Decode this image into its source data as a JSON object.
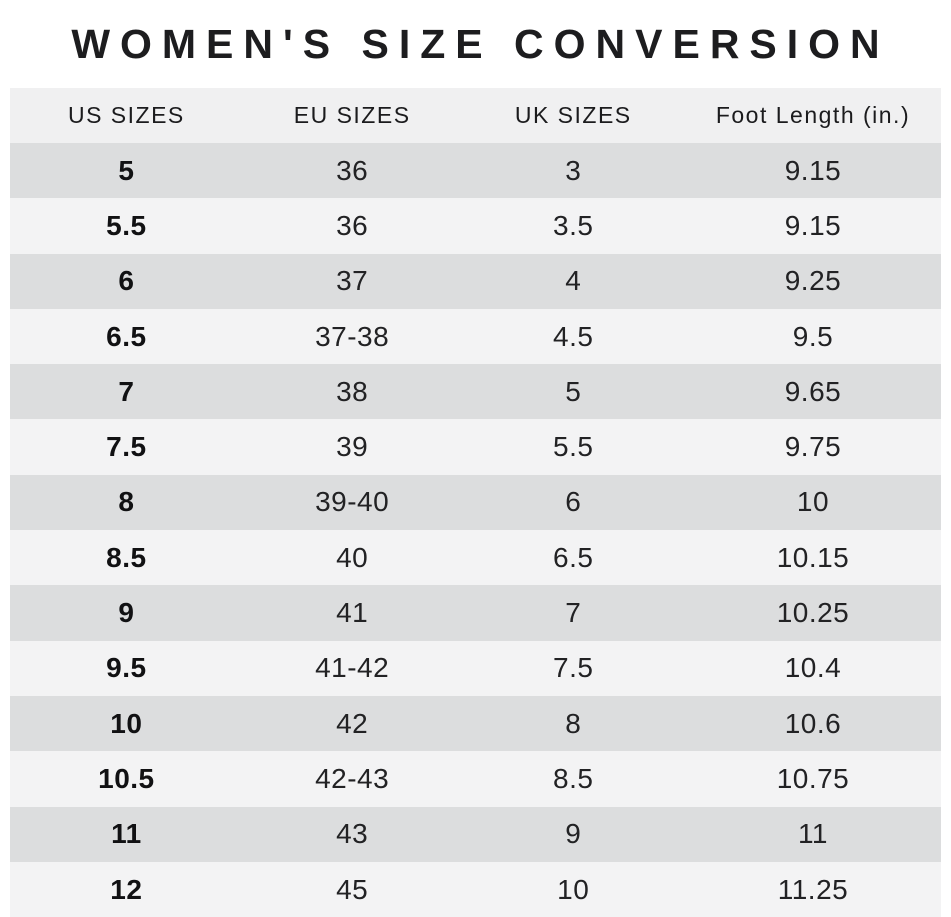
{
  "page_title": "WOMEN'S SIZE CONVERSION",
  "chart_data": {
    "type": "table",
    "title": "WOMEN'S SIZE CONVERSION",
    "columns": [
      "US SIZES",
      "EU SIZES",
      "UK SIZES",
      "Foot Length (in.)"
    ],
    "rows": [
      [
        "5",
        "36",
        "3",
        "9.15"
      ],
      [
        "5.5",
        "36",
        "3.5",
        "9.15"
      ],
      [
        "6",
        "37",
        "4",
        "9.25"
      ],
      [
        "6.5",
        "37-38",
        "4.5",
        "9.5"
      ],
      [
        "7",
        "38",
        "5",
        "9.65"
      ],
      [
        "7.5",
        "39",
        "5.5",
        "9.75"
      ],
      [
        "8",
        "39-40",
        "6",
        "10"
      ],
      [
        "8.5",
        "40",
        "6.5",
        "10.15"
      ],
      [
        "9",
        "41",
        "7",
        "10.25"
      ],
      [
        "9.5",
        "41-42",
        "7.5",
        "10.4"
      ],
      [
        "10",
        "42",
        "8",
        "10.6"
      ],
      [
        "10.5",
        "42-43",
        "8.5",
        "10.75"
      ],
      [
        "11",
        "43",
        "9",
        "11"
      ],
      [
        "12",
        "45",
        "10",
        "11.25"
      ]
    ]
  },
  "colors": {
    "page_bg": "#ffffff",
    "header_bg": "#f0f0f1",
    "row_dark": "#dcddde",
    "row_light": "#f3f3f4",
    "text": "#1d1d1f"
  }
}
